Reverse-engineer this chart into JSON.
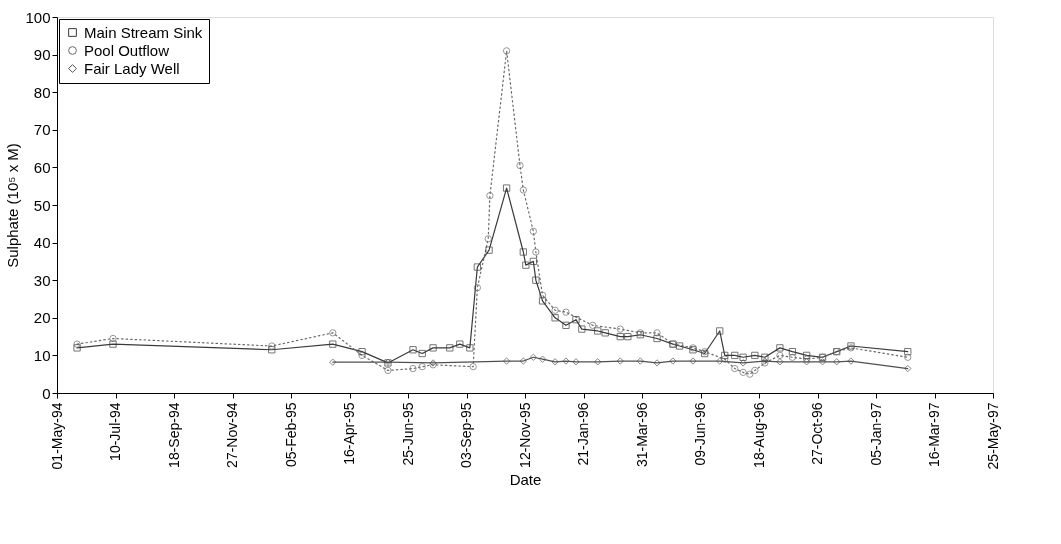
{
  "chart_data": {
    "type": "line",
    "xlabel": "Date",
    "ylabel": "Sulphate (10⁵ x M)",
    "xlim": [
      "1994-05-01",
      "1997-05-25"
    ],
    "xticks": [
      {
        "value": "1994-05-01",
        "label": "01-May-94"
      },
      {
        "value": "1994-07-10",
        "label": "10-Jul-94"
      },
      {
        "value": "1994-09-18",
        "label": "18-Sep-94"
      },
      {
        "value": "1994-11-27",
        "label": "27-Nov-94"
      },
      {
        "value": "1995-02-05",
        "label": "05-Feb-95"
      },
      {
        "value": "1995-04-16",
        "label": "16-Apr-95"
      },
      {
        "value": "1995-06-25",
        "label": "25-Jun-95"
      },
      {
        "value": "1995-09-03",
        "label": "03-Sep-95"
      },
      {
        "value": "1995-11-12",
        "label": "12-Nov-95"
      },
      {
        "value": "1996-01-21",
        "label": "21-Jan-96"
      },
      {
        "value": "1996-03-31",
        "label": "31-Mar-96"
      },
      {
        "value": "1996-06-09",
        "label": "09-Jun-96"
      },
      {
        "value": "1996-08-18",
        "label": "18-Aug-96"
      },
      {
        "value": "1996-10-27",
        "label": "27-Oct-96"
      },
      {
        "value": "1997-01-05",
        "label": "05-Jan-97"
      },
      {
        "value": "1997-03-16",
        "label": "16-Mar-97"
      },
      {
        "value": "1997-05-25",
        "label": "25-May-97"
      }
    ],
    "ylim": [
      0,
      100
    ],
    "yticks": [
      0,
      10,
      20,
      30,
      40,
      50,
      60,
      70,
      80,
      90,
      100
    ],
    "grid": false,
    "legend": "top left",
    "series": [
      {
        "name": "Main Stream Sink",
        "color": "#3a3a3a",
        "marker": "square",
        "line_style": "solid",
        "x": [
          "1994-05-25",
          "1994-07-07",
          "1995-01-13",
          "1995-03-27",
          "1995-05-01",
          "1995-06-01",
          "1995-07-01",
          "1995-07-12",
          "1995-07-25",
          "1995-08-14",
          "1995-08-26",
          "1995-09-07",
          "1995-09-16",
          "1995-09-30",
          "1995-10-21",
          "1995-11-10",
          "1995-11-13",
          "1995-11-22",
          "1995-11-25",
          "1995-12-03",
          "1995-12-18",
          "1995-12-31",
          "1996-01-12",
          "1996-01-19",
          "1996-02-07",
          "1996-02-16",
          "1996-03-05",
          "1996-03-14",
          "1996-03-29",
          "1996-04-18",
          "1996-05-07",
          "1996-05-15",
          "1996-05-31",
          "1996-06-14",
          "1996-07-02",
          "1996-07-08",
          "1996-07-20",
          "1996-07-30",
          "1996-08-13",
          "1996-08-25",
          "1996-09-12",
          "1996-09-27",
          "1996-10-14",
          "1996-11-02",
          "1996-11-19",
          "1996-12-06",
          "1997-02-12"
        ],
        "values": [
          12,
          13,
          11.5,
          13,
          11,
          8,
          11.5,
          10.5,
          12,
          12,
          13,
          12,
          33.5,
          38,
          54.5,
          37.5,
          34,
          35,
          30,
          24.5,
          20,
          18,
          19.5,
          17,
          16.5,
          16,
          15,
          15,
          15.5,
          14.5,
          13,
          12.5,
          11.5,
          10.5,
          16.5,
          10,
          10,
          9.5,
          10,
          9.5,
          12,
          11,
          10,
          9.5,
          11,
          12.5,
          11
        ]
      },
      {
        "name": "Pool Outflow",
        "color": "#6a6a6a",
        "marker": "circle",
        "line_style": "dotted",
        "x": [
          "1994-05-25",
          "1994-07-07",
          "1995-01-13",
          "1995-03-27",
          "1995-05-01",
          "1995-06-01",
          "1995-07-01",
          "1995-07-12",
          "1995-07-25",
          "1995-09-11",
          "1995-09-16",
          "1995-09-29",
          "1995-10-01",
          "1995-10-21",
          "1995-11-06",
          "1995-11-10",
          "1995-11-22",
          "1995-11-25",
          "1995-12-03",
          "1995-12-18",
          "1995-12-31",
          "1996-02-01",
          "1996-03-05",
          "1996-03-29",
          "1996-04-18",
          "1996-05-07",
          "1996-05-31",
          "1996-06-14",
          "1996-07-08",
          "1996-07-20",
          "1996-07-30",
          "1996-08-07",
          "1996-08-13",
          "1996-08-25",
          "1996-09-12",
          "1996-09-27",
          "1996-10-14",
          "1996-11-02",
          "1996-11-19",
          "1996-12-06",
          "1997-02-12"
        ],
        "values": [
          13,
          14.5,
          12.5,
          16,
          10,
          6,
          6.5,
          7,
          7.5,
          7,
          28,
          41,
          52.5,
          91,
          60.5,
          54,
          43,
          37.5,
          26,
          22,
          21.5,
          18,
          17,
          16,
          16,
          13,
          12,
          11,
          9,
          6.5,
          5.5,
          5,
          6,
          8,
          10,
          9.5,
          9,
          9.5,
          11,
          12,
          9.5
        ]
      },
      {
        "name": "Fair Lady Well",
        "color": "#505050",
        "marker": "diamond",
        "line_style": "solid",
        "x": [
          "1995-03-27",
          "1995-06-01",
          "1995-07-25",
          "1995-10-21",
          "1995-11-10",
          "1995-11-22",
          "1995-12-03",
          "1995-12-18",
          "1995-12-31",
          "1996-01-12",
          "1996-02-07",
          "1996-03-05",
          "1996-03-29",
          "1996-04-18",
          "1996-05-07",
          "1996-05-31",
          "1996-07-02",
          "1996-07-30",
          "1996-08-25",
          "1996-09-12",
          "1996-10-14",
          "1996-11-02",
          "1996-11-19",
          "1996-12-06",
          "1997-02-12"
        ],
        "values": [
          8.2,
          8.2,
          8,
          8.5,
          8.5,
          9.5,
          9,
          8.3,
          8.5,
          8.3,
          8.3,
          8.5,
          8.5,
          8,
          8.5,
          8.5,
          8.5,
          8,
          8.5,
          8.3,
          8.3,
          8.3,
          8.3,
          8.5,
          6.5
        ]
      }
    ]
  }
}
